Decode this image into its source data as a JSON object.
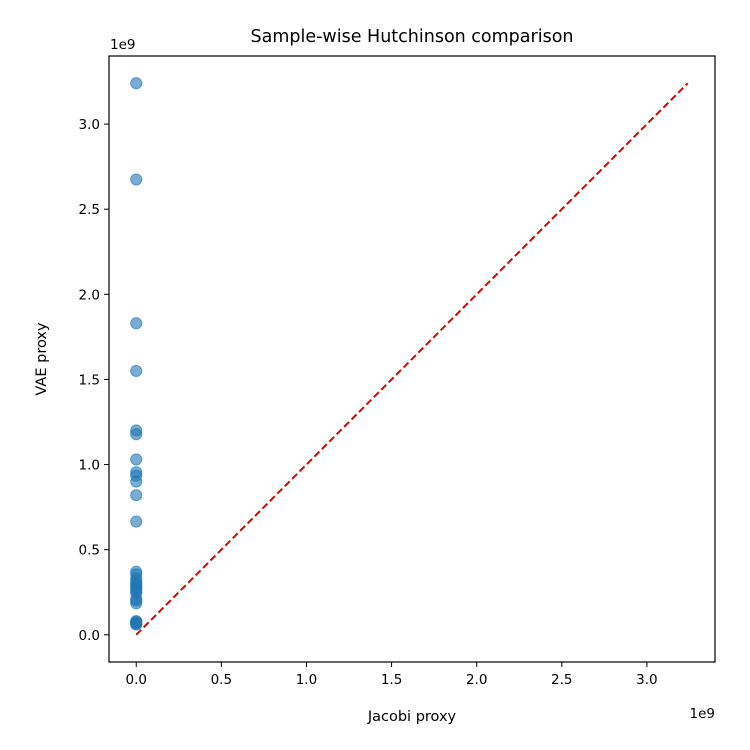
{
  "chart_data": {
    "type": "scatter",
    "title": "Sample-wise Hutchinson comparison",
    "xlabel": "Jacobi proxy",
    "ylabel": "VAE proxy",
    "x_offset_text": "1e9",
    "y_offset_text": "1e9",
    "xlim": [
      -0.16,
      3.4
    ],
    "ylim": [
      -0.16,
      3.4
    ],
    "xticks": [
      0.0,
      0.5,
      1.0,
      1.5,
      2.0,
      2.5,
      3.0
    ],
    "xtick_labels": [
      "0.0",
      "0.5",
      "1.0",
      "1.5",
      "2.0",
      "2.5",
      "3.0"
    ],
    "yticks": [
      0.0,
      0.5,
      1.0,
      1.5,
      2.0,
      2.5,
      3.0
    ],
    "ytick_labels": [
      "0.0",
      "0.5",
      "1.0",
      "1.5",
      "2.0",
      "2.5",
      "3.0"
    ],
    "grid": false,
    "series": [
      {
        "color": "#1f77b4",
        "alpha": 0.6,
        "x": [
          0,
          0,
          0,
          0,
          0,
          0,
          0,
          0,
          0,
          0,
          0,
          0,
          0,
          0,
          0,
          0,
          0,
          0,
          0,
          0,
          0,
          0,
          0,
          0,
          0,
          0,
          0,
          0,
          0,
          0
        ],
        "y": [
          3.24,
          2.675,
          1.83,
          1.55,
          1.2,
          1.178,
          1.03,
          0.955,
          0.935,
          0.9,
          0.82,
          0.665,
          0.37,
          0.355,
          0.33,
          0.315,
          0.3,
          0.29,
          0.28,
          0.27,
          0.255,
          0.245,
          0.21,
          0.2,
          0.185,
          0.08,
          0.075,
          0.07,
          0.065,
          0.06
        ]
      }
    ],
    "reference_line": {
      "style": "dashed",
      "color": "#e00000",
      "x": [
        0.0,
        3.24
      ],
      "y": [
        0.0,
        3.24
      ]
    }
  }
}
